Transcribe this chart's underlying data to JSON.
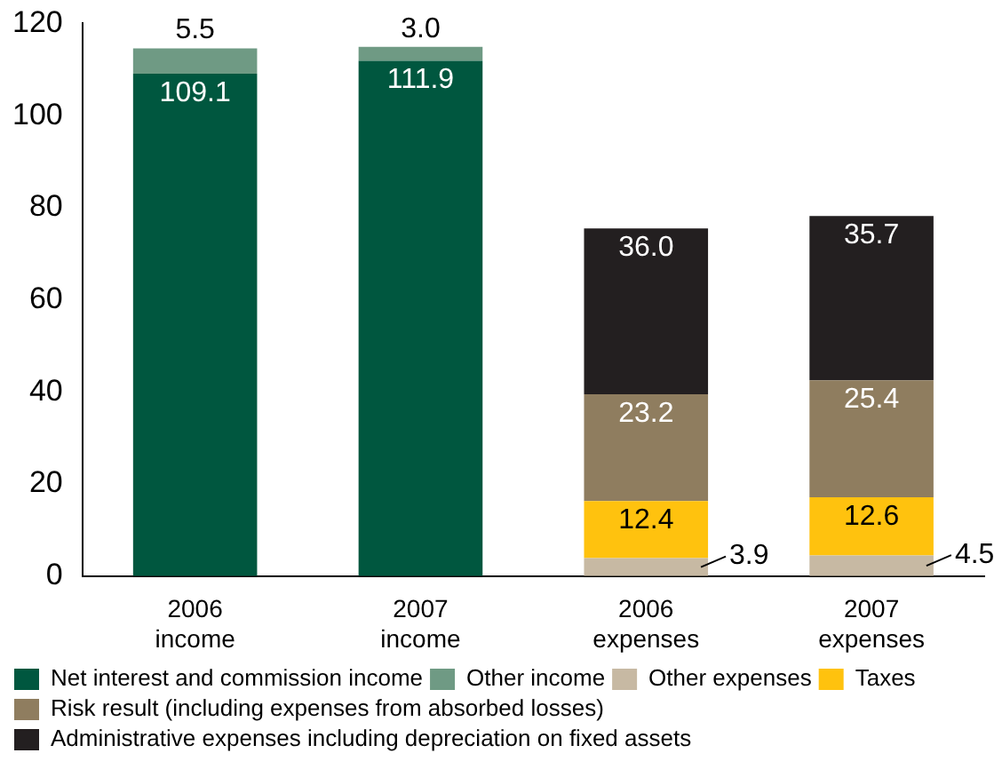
{
  "chart_data": {
    "type": "bar",
    "stacked": true,
    "categories": [
      "2006 income",
      "2007 income",
      "2006 expenses",
      "2007 expenses"
    ],
    "series": [
      {
        "name": "Net interest and commission income",
        "color": "#00573f",
        "values": [
          109.1,
          111.9,
          null,
          null
        ],
        "value_labels": [
          "109.1",
          "111.9",
          null,
          null
        ]
      },
      {
        "name": "Other income",
        "color": "#6f9a84",
        "values": [
          5.5,
          3.0,
          null,
          null
        ],
        "value_labels": [
          "5.5",
          "3.0",
          null,
          null
        ]
      },
      {
        "name": "Other expenses",
        "color": "#c7b9a3",
        "values": [
          null,
          null,
          3.9,
          4.5
        ],
        "value_labels": [
          null,
          null,
          "3.9",
          "4.5"
        ]
      },
      {
        "name": "Taxes",
        "color": "#ffc20e",
        "values": [
          null,
          null,
          12.4,
          12.6
        ],
        "value_labels": [
          null,
          null,
          "12.4",
          "12.6"
        ]
      },
      {
        "name": "Risk result (including expenses from absorbed losses)",
        "color": "#8f7d5f",
        "values": [
          null,
          null,
          23.2,
          25.4
        ],
        "value_labels": [
          null,
          null,
          "23.2",
          "25.4"
        ]
      },
      {
        "name": "Administrative expenses including depreciation on fixed assets",
        "color": "#231f20",
        "values": [
          null,
          null,
          36.0,
          35.7
        ],
        "value_labels": [
          null,
          null,
          "36.0",
          "35.7"
        ]
      }
    ],
    "ylim": [
      0,
      120
    ],
    "yticks": [
      0,
      20,
      40,
      60,
      80,
      100,
      120
    ],
    "grid": false,
    "legend": "bottom"
  }
}
